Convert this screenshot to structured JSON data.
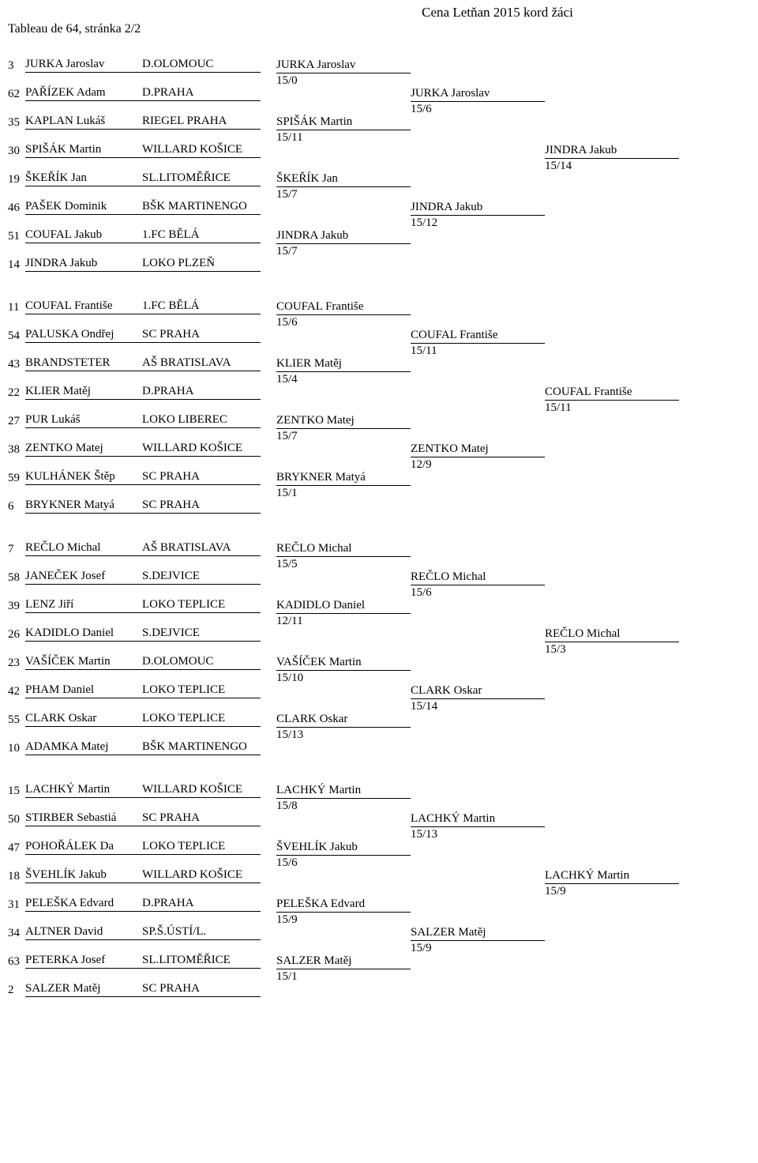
{
  "title": "Cena Letňan 2015 kord žáci",
  "subtitle": "Tableau de 64,   stránka 2/2",
  "groups": [
    {
      "seeds": [
        {
          "n": "3",
          "name": "JURKA Jaroslav",
          "club": "D.OLOMOUC"
        },
        {
          "n": "62",
          "name": "PAŘÍZEK Adam",
          "club": "D.PRAHA"
        },
        {
          "n": "35",
          "name": "KAPLAN Lukáš",
          "club": "RIEGEL PRAHA"
        },
        {
          "n": "30",
          "name": "SPIŠÁK Martin",
          "club": "WILLARD KOŠICE"
        },
        {
          "n": "19",
          "name": "ŠKEŘÍK Jan",
          "club": "SL.LITOMĚŘICE"
        },
        {
          "n": "46",
          "name": "PAŠEK Dominik",
          "club": "BŠK MARTINENGO"
        },
        {
          "n": "51",
          "name": "COUFAL Jakub",
          "club": "1.FC BĚLÁ"
        },
        {
          "n": "14",
          "name": "JINDRA Jakub",
          "club": "LOKO PLZEŇ"
        }
      ],
      "r32": [
        {
          "name": "JURKA Jaroslav",
          "score": "15/0"
        },
        {
          "name": "SPIŠÁK Martin",
          "score": "15/11"
        },
        {
          "name": "ŠKEŘÍK Jan",
          "score": "15/7"
        },
        {
          "name": "JINDRA Jakub",
          "score": "15/7"
        }
      ],
      "r16": [
        {
          "name": "JURKA Jaroslav",
          "score": "15/6"
        },
        {
          "name": "JINDRA Jakub",
          "score": "15/12"
        }
      ],
      "r8": [
        {
          "name": "JINDRA Jakub",
          "score": "15/14"
        }
      ]
    },
    {
      "seeds": [
        {
          "n": "11",
          "name": "COUFAL Františe",
          "club": "1.FC BĚLÁ"
        },
        {
          "n": "54",
          "name": "PALUSKA Ondřej",
          "club": "SC PRAHA"
        },
        {
          "n": "43",
          "name": "BRANDSTETER",
          "club": "AŠ BRATISLAVA"
        },
        {
          "n": "22",
          "name": "KLIER Matěj",
          "club": "D.PRAHA"
        },
        {
          "n": "27",
          "name": "PUR Lukáš",
          "club": "LOKO LIBEREC"
        },
        {
          "n": "38",
          "name": "ZENTKO Matej",
          "club": "WILLARD KOŠICE"
        },
        {
          "n": "59",
          "name": "KULHÁNEK Štěp",
          "club": "SC PRAHA"
        },
        {
          "n": "6",
          "name": "BRYKNER Matyá",
          "club": "SC PRAHA"
        }
      ],
      "r32": [
        {
          "name": "COUFAL Františe",
          "score": "15/6"
        },
        {
          "name": "KLIER Matěj",
          "score": "15/4"
        },
        {
          "name": "ZENTKO Matej",
          "score": "15/7"
        },
        {
          "name": "BRYKNER Matyá",
          "score": "15/1"
        }
      ],
      "r16": [
        {
          "name": "COUFAL Františe",
          "score": "15/11"
        },
        {
          "name": "ZENTKO Matej",
          "score": "12/9"
        }
      ],
      "r8": [
        {
          "name": "COUFAL Františe",
          "score": "15/11"
        }
      ]
    },
    {
      "seeds": [
        {
          "n": "7",
          "name": "REČLO Michal",
          "club": "AŠ BRATISLAVA"
        },
        {
          "n": "58",
          "name": "JANEČEK Josef",
          "club": "S.DEJVICE"
        },
        {
          "n": "39",
          "name": "LENZ Jiří",
          "club": "LOKO TEPLICE"
        },
        {
          "n": "26",
          "name": "KADIDLO Daniel",
          "club": "S.DEJVICE"
        },
        {
          "n": "23",
          "name": "VAŠÍČEK Martin",
          "club": "D.OLOMOUC"
        },
        {
          "n": "42",
          "name": "PHAM Daniel",
          "club": "LOKO TEPLICE"
        },
        {
          "n": "55",
          "name": "CLARK Oskar",
          "club": "LOKO TEPLICE"
        },
        {
          "n": "10",
          "name": "ADAMKA Matej",
          "club": "BŠK MARTINENGO"
        }
      ],
      "r32": [
        {
          "name": "REČLO Michal",
          "score": "15/5"
        },
        {
          "name": "KADIDLO Daniel",
          "score": "12/11"
        },
        {
          "name": "VAŠÍČEK Martin",
          "score": "15/10"
        },
        {
          "name": "CLARK Oskar",
          "score": "15/13"
        }
      ],
      "r16": [
        {
          "name": "REČLO Michal",
          "score": "15/6"
        },
        {
          "name": "CLARK Oskar",
          "score": "15/14"
        }
      ],
      "r8": [
        {
          "name": "REČLO Michal",
          "score": "15/3"
        }
      ]
    },
    {
      "seeds": [
        {
          "n": "15",
          "name": "LACHKÝ Martin",
          "club": "WILLARD KOŠICE"
        },
        {
          "n": "50",
          "name": "STIRBER Sebastiá",
          "club": "SC PRAHA"
        },
        {
          "n": "47",
          "name": "POHOŘÁLEK Da",
          "club": "LOKO TEPLICE"
        },
        {
          "n": "18",
          "name": "ŠVEHLÍK Jakub",
          "club": "WILLARD KOŠICE"
        },
        {
          "n": "31",
          "name": "PELEŠKA Edvard",
          "club": "D.PRAHA"
        },
        {
          "n": "34",
          "name": "ALTNER David",
          "club": "SP.Š.ÚSTÍ/L."
        },
        {
          "n": "63",
          "name": "PETERKA Josef",
          "club": "SL.LITOMĚŘICE"
        },
        {
          "n": "2",
          "name": "SALZER Matěj",
          "club": "SC PRAHA"
        }
      ],
      "r32": [
        {
          "name": "LACHKÝ Martin",
          "score": "15/8"
        },
        {
          "name": "ŠVEHLÍK Jakub",
          "score": "15/6"
        },
        {
          "name": "PELEŠKA Edvard",
          "score": "15/9"
        },
        {
          "name": "SALZER Matěj",
          "score": "15/1"
        }
      ],
      "r16": [
        {
          "name": "LACHKÝ Martin",
          "score": "15/13"
        },
        {
          "name": "SALZER Matěj",
          "score": "15/9"
        }
      ],
      "r8": [
        {
          "name": "LACHKÝ Martin",
          "score": "15/9"
        }
      ]
    }
  ]
}
